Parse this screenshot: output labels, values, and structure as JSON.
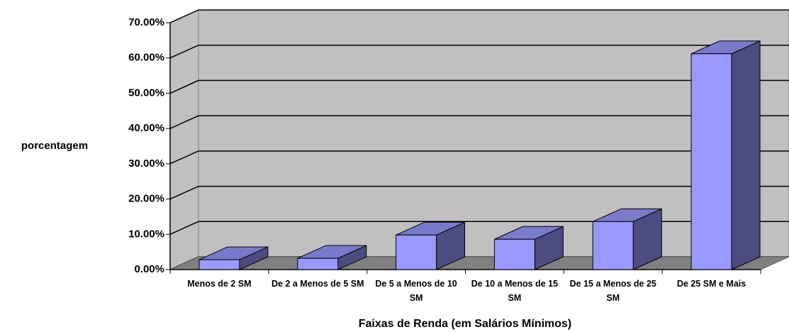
{
  "chart_data": {
    "type": "bar3d",
    "x_label": "Faixas de Renda (em Salários Mínimos)",
    "y_label": "porcentagem",
    "categories": [
      "Menos de 2 SM",
      "De 2 a Menos de 5 SM",
      "De 5 a Menos de 10 SM",
      "De 10 a Menos de 15 SM",
      "De 15 a Menos de 25 SM",
      "De 25 SM e Mais"
    ],
    "values": [
      2.8,
      3.2,
      9.8,
      8.6,
      13.6,
      61.2
    ],
    "color": "#9999ff",
    "ylim": [
      0,
      70
    ],
    "yticks": [
      {
        "value": 0,
        "label": "0.00%"
      },
      {
        "value": 10,
        "label": "10.00%"
      },
      {
        "value": 20,
        "label": "20.00%"
      },
      {
        "value": 30,
        "label": "30.00%"
      },
      {
        "value": 40,
        "label": "40.00%"
      },
      {
        "value": 50,
        "label": "50.00%"
      },
      {
        "value": 60,
        "label": "60.00%"
      },
      {
        "value": 70,
        "label": "70.00%"
      }
    ],
    "grid": true
  }
}
